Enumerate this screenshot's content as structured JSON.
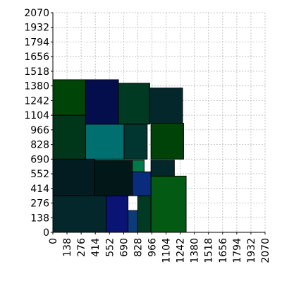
{
  "chart_data": {
    "type": "rect-packing",
    "xlim": [
      0,
      2070
    ],
    "ylim": [
      0,
      2070
    ],
    "x_ticks": [
      0,
      138,
      276,
      414,
      552,
      690,
      828,
      966,
      1104,
      1242,
      1380,
      1518,
      1656,
      1794,
      1932,
      2070
    ],
    "y_ticks": [
      0,
      138,
      276,
      414,
      552,
      690,
      828,
      966,
      1104,
      1242,
      1380,
      1518,
      1656,
      1794,
      1932,
      2070
    ],
    "grid": true,
    "x_tick_rotation": "vertical",
    "rectangles": [
      {
        "x0": 0,
        "y0": 0,
        "x1": 522,
        "y1": 345,
        "color": "#03272b"
      },
      {
        "x0": 522,
        "y0": 0,
        "x1": 733,
        "y1": 345,
        "color": "#0a1474"
      },
      {
        "x0": 733,
        "y0": 0,
        "x1": 828,
        "y1": 205,
        "color": "#0b3b7a"
      },
      {
        "x0": 828,
        "y0": 0,
        "x1": 957,
        "y1": 345,
        "color": "#003a22"
      },
      {
        "x0": 957,
        "y0": 0,
        "x1": 1300,
        "y1": 530,
        "color": "#035a12"
      },
      {
        "x0": 0,
        "y0": 345,
        "x1": 408,
        "y1": 690,
        "color": "#031c22"
      },
      {
        "x0": 408,
        "y0": 345,
        "x1": 775,
        "y1": 680,
        "color": "#021818"
      },
      {
        "x0": 775,
        "y0": 345,
        "x1": 957,
        "y1": 570,
        "color": "#0a2c7c"
      },
      {
        "x0": 775,
        "y0": 570,
        "x1": 890,
        "y1": 680,
        "color": "#007848"
      },
      {
        "x0": 957,
        "y0": 530,
        "x1": 1185,
        "y1": 680,
        "color": "#03272b"
      },
      {
        "x0": 0,
        "y0": 690,
        "x1": 320,
        "y1": 1104,
        "color": "#00361a"
      },
      {
        "x0": 320,
        "y0": 690,
        "x1": 695,
        "y1": 1020,
        "color": "#006f6f"
      },
      {
        "x0": 695,
        "y0": 690,
        "x1": 920,
        "y1": 1020,
        "color": "#00362f"
      },
      {
        "x0": 957,
        "y0": 690,
        "x1": 1275,
        "y1": 1028,
        "color": "#004308"
      },
      {
        "x0": 0,
        "y0": 1104,
        "x1": 320,
        "y1": 1438,
        "color": "#004508"
      },
      {
        "x0": 320,
        "y0": 1020,
        "x1": 640,
        "y1": 1438,
        "color": "#050e4c"
      },
      {
        "x0": 640,
        "y0": 1020,
        "x1": 945,
        "y1": 1405,
        "color": "#003a22"
      },
      {
        "x0": 945,
        "y0": 1028,
        "x1": 1265,
        "y1": 1360,
        "color": "#03272b"
      }
    ]
  }
}
